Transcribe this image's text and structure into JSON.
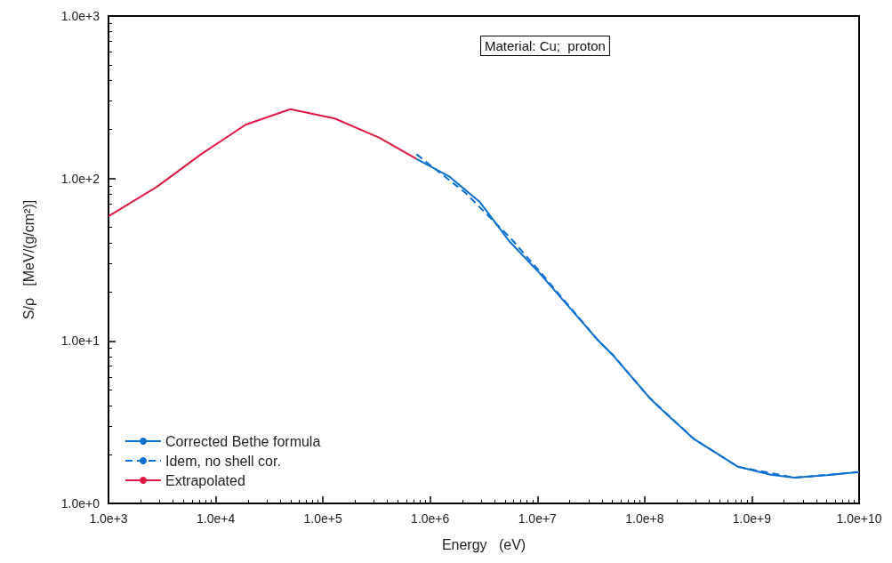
{
  "chart_data": {
    "type": "line",
    "xlabel": "Energy   (eV)",
    "ylabel": "S/ρ   [MeV/(g/cm²)]",
    "log": "xy",
    "grid": false,
    "legend": "bottom left",
    "marker": "none",
    "annotations": [
      "Material: Cu;  proton"
    ],
    "xlim": [
      1000,
      10000000000
    ],
    "ylim": [
      1,
      1000
    ],
    "xticks": [
      {
        "value": 1000,
        "label": "1.0e+3"
      },
      {
        "value": 10000,
        "label": "1.0e+4"
      },
      {
        "value": 100000,
        "label": "1.0e+5"
      },
      {
        "value": 1000000,
        "label": "1.0e+6"
      },
      {
        "value": 10000000,
        "label": "1.0e+7"
      },
      {
        "value": 100000000,
        "label": "1.0e+8"
      },
      {
        "value": 1000000000,
        "label": "1.0e+9"
      },
      {
        "value": 10000000000,
        "label": "1.0e+10"
      }
    ],
    "yticks": [
      {
        "value": 1,
        "label": "1.0e+0"
      },
      {
        "value": 10,
        "label": "1.0e+1"
      },
      {
        "value": 100,
        "label": "1.0e+2"
      },
      {
        "value": 1000,
        "label": "1.0e+3"
      }
    ],
    "series": [
      {
        "name": "Corrected Bethe formula",
        "color": "#0a6fd0",
        "line_style": "solid",
        "x": [
          745000,
          1500000,
          2880000,
          5520000,
          10400000,
          37200000,
          51300000,
          110000000,
          133000000,
          286000000,
          743000000,
          1500000000,
          2490000000,
          5000000000,
          10000000000
        ],
        "values": [
          132,
          103,
          72,
          40.8,
          26.3,
          10,
          8.1,
          4.5,
          3.97,
          2.5,
          1.68,
          1.5,
          1.44,
          1.49,
          1.56
        ]
      },
      {
        "name": "Idem, no shell cor.",
        "color": "#0a6fd0",
        "line_style": "dashed",
        "x": [
          745000,
          2130000,
          5520000,
          10400000,
          37200000,
          51300000,
          110000000,
          286000000,
          743000000,
          2490000000,
          10000000000
        ],
        "values": [
          141,
          81.6,
          43.5,
          27,
          10,
          8.1,
          4.5,
          2.5,
          1.68,
          1.44,
          1.56
        ]
      },
      {
        "name": "Extrapolated",
        "color": "#dc1a44",
        "line_style": "solid",
        "x": [
          1000,
          2840,
          7400,
          19200,
          49700,
          129000,
          336000,
          745000
        ],
        "values": [
          58.6,
          89,
          142,
          215,
          267,
          234,
          178,
          132
        ]
      }
    ]
  }
}
